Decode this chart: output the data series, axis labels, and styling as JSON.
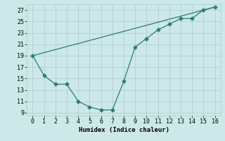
{
  "line1_x": [
    0,
    1,
    2,
    3,
    4,
    5,
    6,
    7,
    8,
    9,
    10,
    11,
    12,
    13,
    14,
    15,
    16
  ],
  "line1_y": [
    19,
    15.5,
    14,
    14,
    11,
    10,
    9.5,
    9.5,
    14.5,
    20.5,
    22,
    23.5,
    24.5,
    25.5,
    25.5,
    27,
    27.5
  ],
  "line2_x": [
    0,
    16
  ],
  "line2_y": [
    19,
    27.5
  ],
  "color": "#2e7d6e",
  "bg_color": "#cce8e8",
  "grid_color": "#aacccc",
  "xlabel": "Humidex (Indice chaleur)",
  "xlim": [
    -0.5,
    16.5
  ],
  "ylim": [
    8.5,
    28
  ],
  "xticks": [
    0,
    1,
    2,
    3,
    4,
    5,
    6,
    7,
    8,
    9,
    10,
    11,
    12,
    13,
    14,
    15,
    16
  ],
  "yticks": [
    9,
    11,
    13,
    15,
    17,
    19,
    21,
    23,
    25,
    27
  ],
  "axis_fontsize": 6.5,
  "tick_fontsize": 6.0,
  "marker_size": 2.5,
  "linewidth": 0.9
}
